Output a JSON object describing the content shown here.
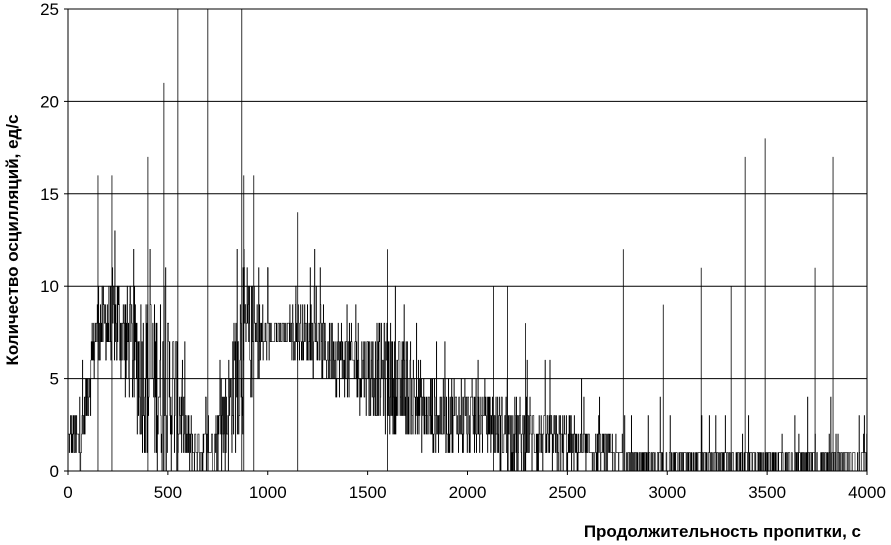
{
  "chart_data": {
    "type": "line",
    "title": "",
    "xlabel": "Продолжительность пропитки, с",
    "ylabel": "Количество осцилляций, ед/с",
    "xlim": [
      0,
      4000
    ],
    "ylim": [
      0,
      25
    ],
    "xticks": [
      0,
      500,
      1000,
      1500,
      2000,
      2500,
      3000,
      3500,
      4000
    ],
    "yticks": [
      0,
      5,
      10,
      15,
      20,
      25
    ],
    "grid": {
      "horizontal": true,
      "vertical": false
    },
    "legend": "none",
    "line_color": "#000000",
    "envelope": {
      "x": [
        0,
        60,
        150,
        250,
        320,
        400,
        480,
        540,
        600,
        700,
        800,
        870,
        950,
        1050,
        1150,
        1250,
        1350,
        1500,
        1600,
        1700,
        1800,
        2000,
        2100,
        2200,
        2300,
        2400,
        2500,
        2600,
        2700,
        2800,
        3000,
        3200,
        3400,
        3600,
        3800,
        4000
      ],
      "high": [
        3,
        3,
        10,
        11,
        10,
        10,
        9,
        8,
        3,
        2,
        6,
        12,
        9,
        8,
        9,
        9,
        8,
        8,
        8,
        7,
        5,
        5,
        4,
        4,
        4,
        3,
        3,
        2,
        2,
        1,
        1,
        1,
        1,
        1,
        1,
        1
      ],
      "low": [
        1,
        0,
        6,
        5,
        3,
        0,
        0,
        0,
        0,
        0,
        0,
        2,
        5,
        7,
        6,
        5,
        4,
        3,
        2,
        2,
        1,
        1,
        1,
        0,
        0,
        0,
        0,
        0,
        0,
        0,
        0,
        0,
        0,
        0,
        0,
        0
      ]
    },
    "spikes": [
      [
        150,
        16
      ],
      [
        220,
        16
      ],
      [
        400,
        17
      ],
      [
        480,
        21
      ],
      [
        550,
        25
      ],
      [
        700,
        25
      ],
      [
        870,
        25
      ],
      [
        880,
        16
      ],
      [
        930,
        16
      ],
      [
        1150,
        14
      ],
      [
        1600,
        12
      ],
      [
        2130,
        10
      ],
      [
        2200,
        10
      ],
      [
        2290,
        8
      ],
      [
        2780,
        12
      ],
      [
        2980,
        9
      ],
      [
        3170,
        11
      ],
      [
        3320,
        10
      ],
      [
        3390,
        17
      ],
      [
        3490,
        18
      ],
      [
        3740,
        11
      ],
      [
        3830,
        17
      ]
    ]
  }
}
